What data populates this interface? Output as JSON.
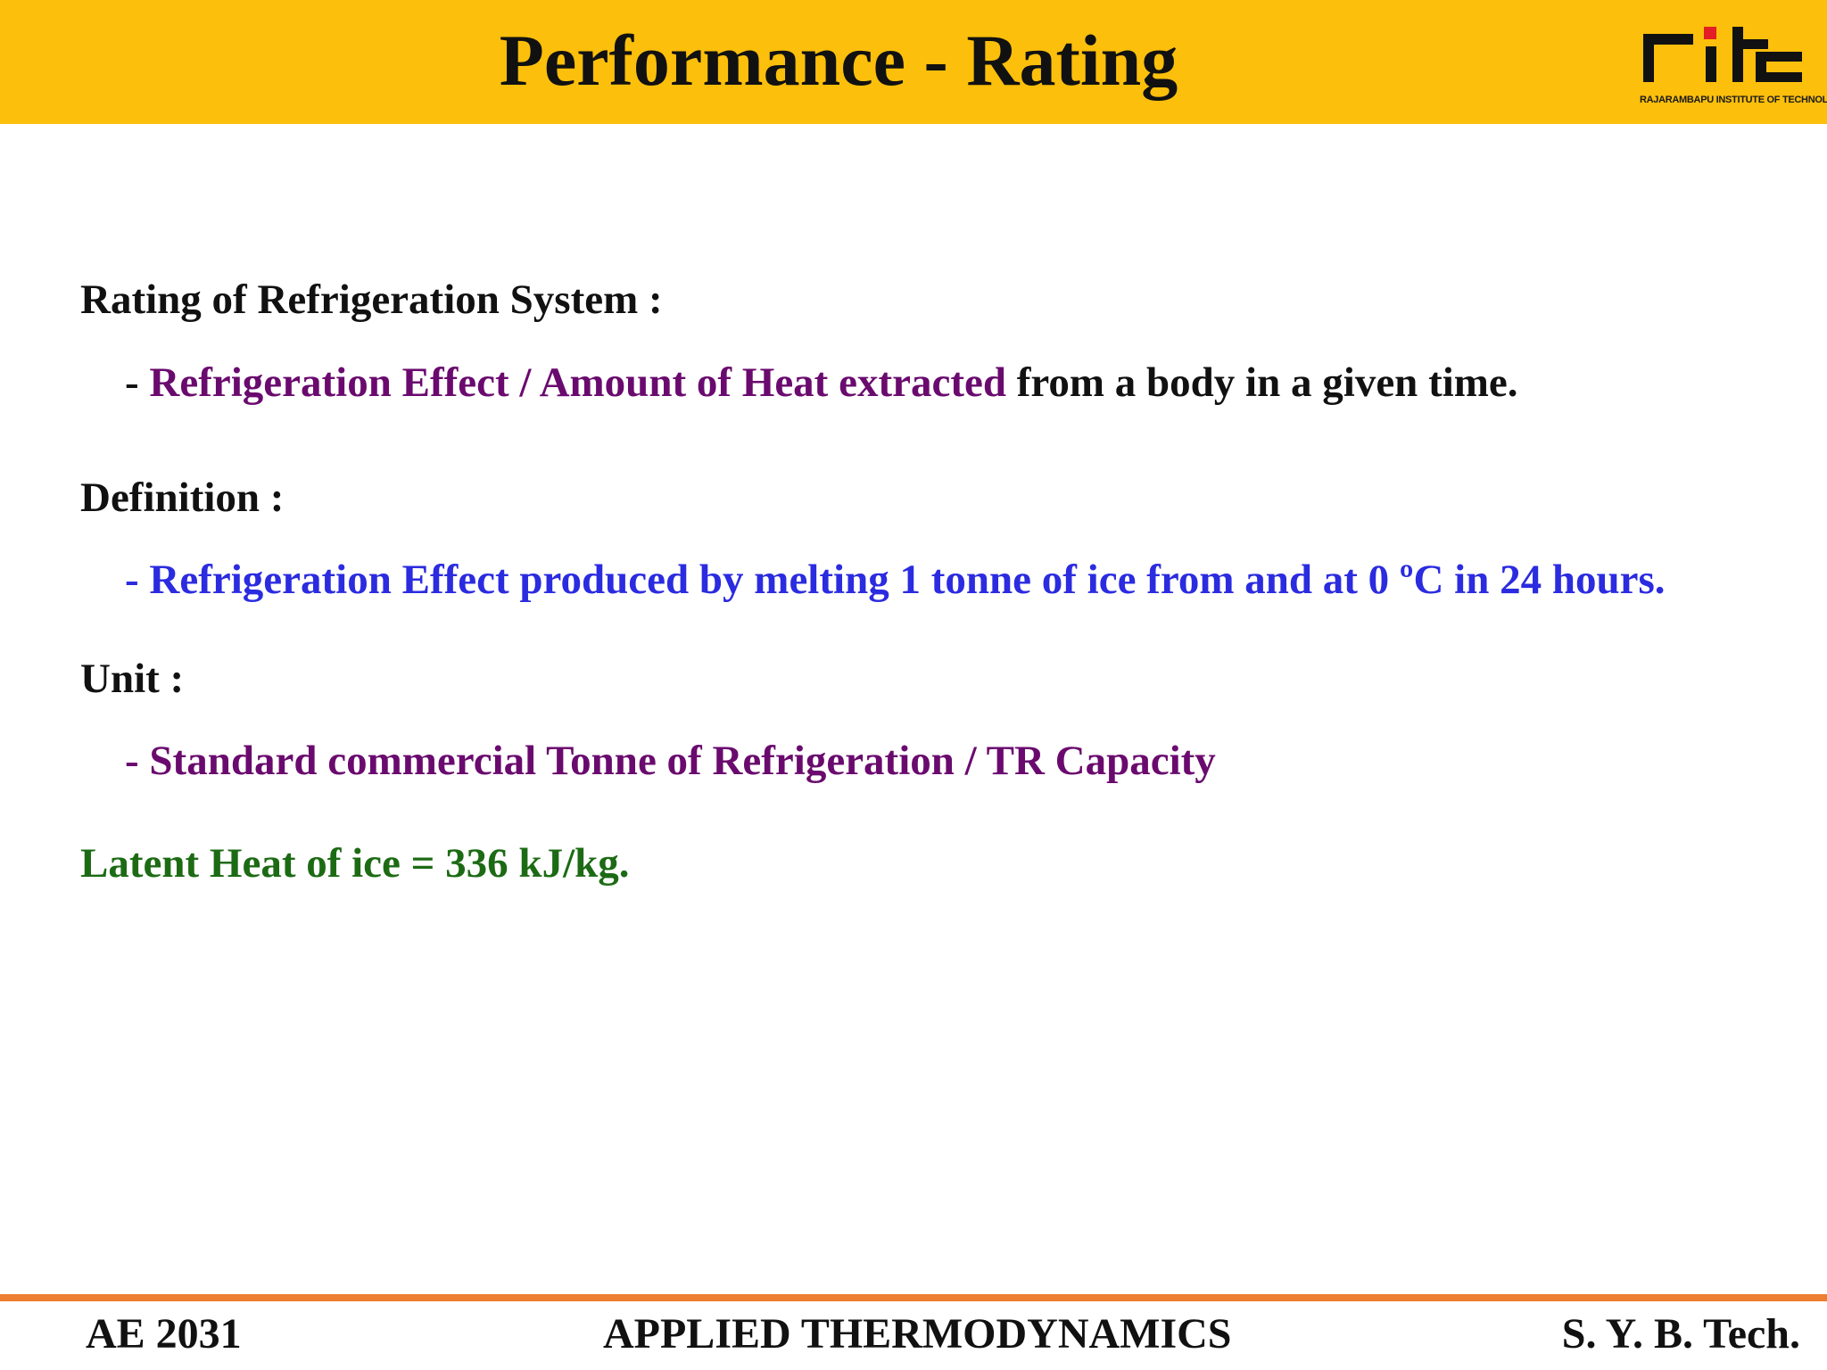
{
  "header": {
    "title": "Performance - Rating",
    "logo": {
      "mark_text": "rit",
      "caption": "RAJARAMBAPU INSTITUTE OF TECHNOLOGY",
      "dot_color": "#e31e24"
    },
    "background_color": "#fcbf0b"
  },
  "content": {
    "rating_heading": "Rating of Refrigeration System :",
    "rating_bullet": {
      "dash": "- ",
      "highlight": "Refrigeration Effect / Amount of Heat extracted",
      "rest": " from a body in a given time."
    },
    "definition_heading": "Definition :",
    "definition_bullet": "- Refrigeration Effect produced by melting 1 tonne of ice from and at 0 ºC in 24 hours.",
    "unit_heading": "Unit :",
    "unit_bullet": "- Standard commercial Tonne of Refrigeration / TR Capacity",
    "latent_heat": "Latent Heat of ice = 336 kJ/kg."
  },
  "footer": {
    "course_code": "AE 2031",
    "course_name": "APPLIED THERMODYNAMICS",
    "program": "S. Y. B. Tech."
  },
  "colors": {
    "purple": "#6a0a6e",
    "blue": "#2b2be0",
    "green": "#1c6b14",
    "footer_rule": "#ed7d31"
  }
}
